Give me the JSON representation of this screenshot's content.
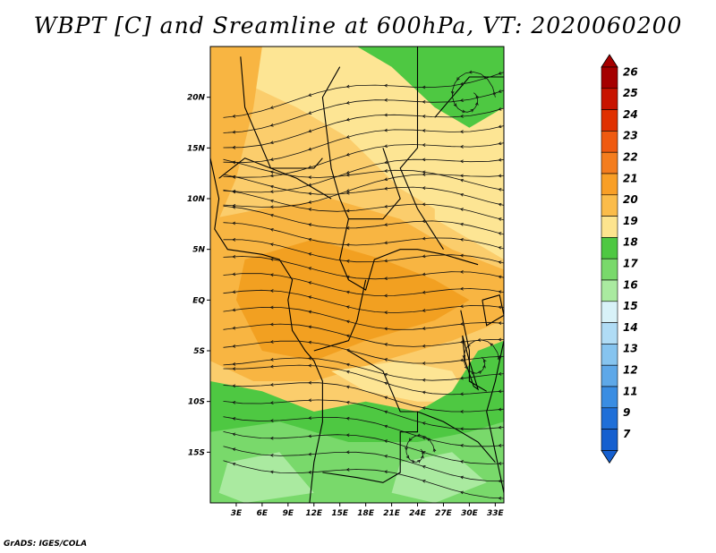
{
  "title": "WBPT [C] and Sreamline at 600hPa, VT: 2020060200",
  "credit": "GrADS: IGES/COLA",
  "map": {
    "lat_range": [
      -20,
      25
    ],
    "lon_range": [
      0,
      34
    ],
    "lat_ticks": [
      {
        "value": 20,
        "label": "20N"
      },
      {
        "value": 15,
        "label": "15N"
      },
      {
        "value": 10,
        "label": "10N"
      },
      {
        "value": 5,
        "label": "5N"
      },
      {
        "value": 0,
        "label": "EQ"
      },
      {
        "value": -5,
        "label": "5S"
      },
      {
        "value": -10,
        "label": "10S"
      },
      {
        "value": -15,
        "label": "15S"
      }
    ],
    "lon_ticks": [
      {
        "value": 3,
        "label": "3E"
      },
      {
        "value": 6,
        "label": "6E"
      },
      {
        "value": 9,
        "label": "9E"
      },
      {
        "value": 12,
        "label": "12E"
      },
      {
        "value": 15,
        "label": "15E"
      },
      {
        "value": 18,
        "label": "18E"
      },
      {
        "value": 21,
        "label": "21E"
      },
      {
        "value": 24,
        "label": "24E"
      },
      {
        "value": 27,
        "label": "27E"
      },
      {
        "value": 30,
        "label": "30E"
      },
      {
        "value": 33,
        "label": "33E"
      }
    ]
  },
  "colorbar": {
    "labels": [
      "26",
      "25",
      "24",
      "23",
      "22",
      "21",
      "20",
      "19",
      "18",
      "17",
      "16",
      "15",
      "14",
      "13",
      "12",
      "11",
      "9",
      "7"
    ],
    "colors": [
      "#a50000",
      "#c81400",
      "#e03000",
      "#ef5a10",
      "#f47d1e",
      "#f99f26",
      "#fbbc4a",
      "#fde48e",
      "#4ec842",
      "#79d96b",
      "#aaeaa0",
      "#d8f2f8",
      "#b0dcf5",
      "#86c4ef",
      "#5ea8e8",
      "#3a8de2",
      "#1f6fd8",
      "#155fcf"
    ]
  },
  "field_colors": {
    "orange_dark": "#f2a021",
    "orange": "#f8b542",
    "tan": "#fbcd6c",
    "yellow": "#fde594",
    "green": "#4ec842",
    "green_mid": "#79d96b",
    "green_light": "#aaeaa0"
  }
}
